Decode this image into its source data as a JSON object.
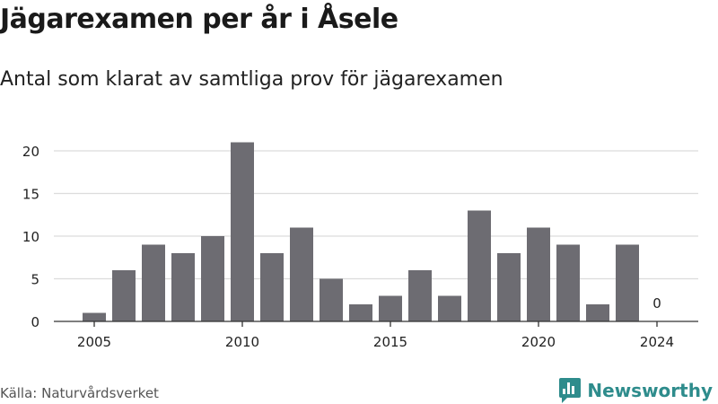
{
  "title": "Jägarexamen per år i Åsele",
  "subtitle": "Antal som klarat av samtliga prov för jägarexamen",
  "source": "Källa: Naturvårdsverket",
  "brand": {
    "name": "Newsworthy",
    "icon": "bar-chart-logo-icon",
    "color": "#2e8c8c"
  },
  "chart_data": {
    "type": "bar",
    "categories": [
      "2005",
      "2006",
      "2007",
      "2008",
      "2009",
      "2010",
      "2011",
      "2012",
      "2013",
      "2014",
      "2015",
      "2016",
      "2017",
      "2018",
      "2019",
      "2020",
      "2021",
      "2022",
      "2023",
      "2024"
    ],
    "values": [
      1,
      6,
      9,
      8,
      10,
      21,
      8,
      11,
      5,
      2,
      3,
      6,
      3,
      13,
      8,
      11,
      9,
      2,
      9,
      0
    ],
    "x_tick_labels": [
      "2005",
      "2010",
      "2015",
      "2020",
      "2024"
    ],
    "y_ticks": [
      0,
      5,
      10,
      15,
      20
    ],
    "ylim": [
      0,
      22
    ],
    "grid": true,
    "bar_color": "#6d6c72",
    "annotations": [
      {
        "category": "2024",
        "text": "0"
      }
    ],
    "xlabel": "",
    "ylabel": ""
  }
}
